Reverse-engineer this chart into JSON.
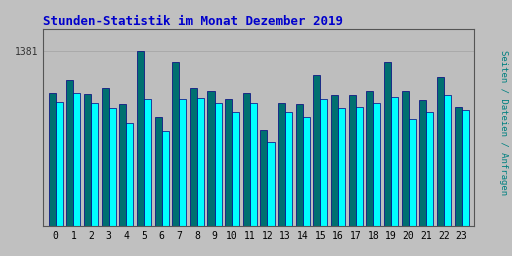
{
  "title": "Stunden-Statistik im Monat Dezember 2019",
  "title_color": "#0000CC",
  "ylabel": "Seiten / Dateien / Anfragen",
  "ylabel_color": "#008080",
  "background_color": "#C0C0C0",
  "plot_bg_color": "#BEBEBE",
  "hours": [
    0,
    1,
    2,
    3,
    4,
    5,
    6,
    7,
    8,
    9,
    10,
    11,
    12,
    13,
    14,
    15,
    16,
    17,
    18,
    19,
    20,
    21,
    22,
    23
  ],
  "max_label": "1381",
  "ylim_max": 1550,
  "ytick_val": 1381,
  "teal_bars": [
    1050,
    1150,
    1040,
    1090,
    960,
    1381,
    860,
    1290,
    1090,
    1060,
    1000,
    1050,
    760,
    970,
    960,
    1190,
    1030,
    1030,
    1060,
    1290,
    1060,
    990,
    1170,
    940
  ],
  "cyan_bars": [
    980,
    1050,
    970,
    930,
    810,
    1000,
    750,
    1000,
    1010,
    970,
    900,
    970,
    665,
    900,
    855,
    1000,
    930,
    940,
    970,
    1020,
    845,
    900,
    1030,
    915
  ],
  "teal_color": "#007070",
  "cyan_color": "#00FFFF",
  "bar_edge_color": "#000080",
  "bar_width": 0.4
}
